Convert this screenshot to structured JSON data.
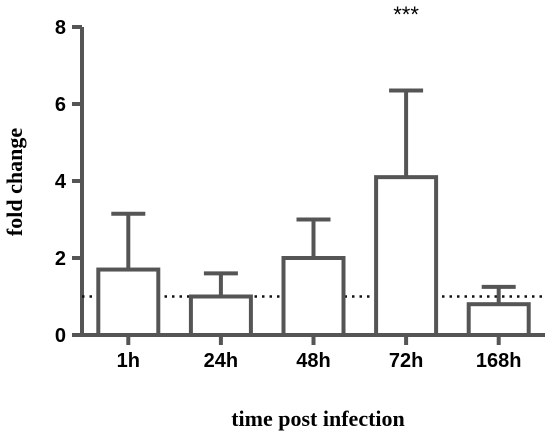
{
  "chart_data": {
    "type": "bar",
    "categories": [
      "1h",
      "24h",
      "48h",
      "72h",
      "168h"
    ],
    "values": [
      1.7,
      1.0,
      2.0,
      4.1,
      0.8
    ],
    "error_upper": [
      3.15,
      1.6,
      3.0,
      6.35,
      1.25
    ],
    "xlabel": "time post infection",
    "ylabel": "fold change",
    "ylim": [
      0,
      8
    ],
    "yticks": [
      0,
      2,
      4,
      6,
      8
    ],
    "reference_line": 1,
    "annotations": [
      {
        "category": "72h",
        "text": "***"
      }
    ],
    "grid": false,
    "colors": {
      "bar_fill": "#ffffff",
      "bar_stroke": "#555555",
      "axis": "#555555"
    }
  }
}
